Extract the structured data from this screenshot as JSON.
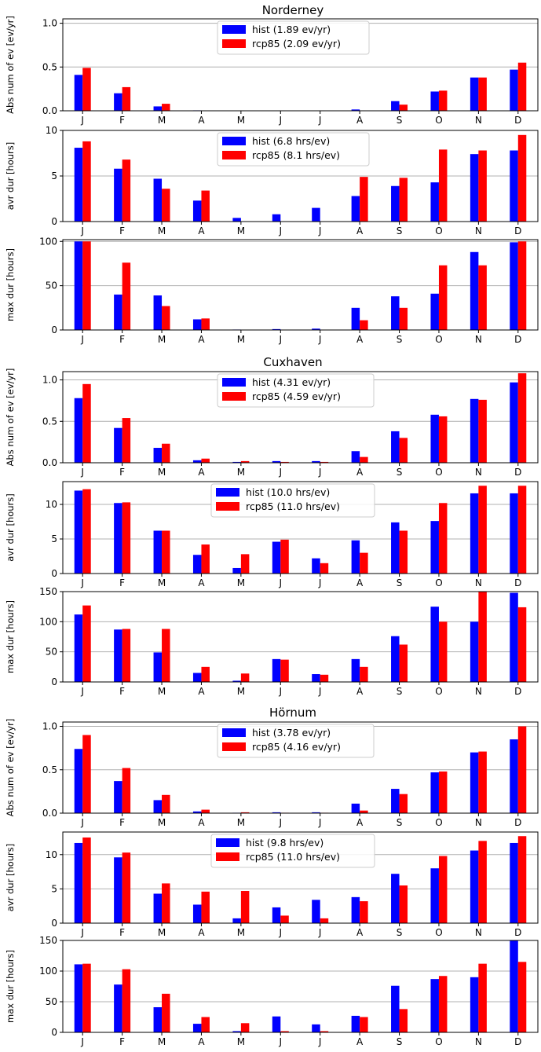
{
  "colors": {
    "hist": "#0000ff",
    "rcp85": "#ff0000"
  },
  "stations": [
    {
      "title": "Norderney"
    },
    {
      "title": "Cuxhaven"
    },
    {
      "title": "Hörnum"
    }
  ],
  "chart_data": [
    {
      "type": "bar",
      "station": "Norderney",
      "ylabel": "Abs num of ev [ev/yr]",
      "ylim": [
        0,
        1.05
      ],
      "yticks": [
        "0.0",
        "0.5",
        "1.0"
      ],
      "ytick_values": [
        0,
        0.5,
        1.0
      ],
      "categories": [
        "J",
        "F",
        "M",
        "A",
        "M",
        "J",
        "J",
        "A",
        "S",
        "O",
        "N",
        "D"
      ],
      "legend": [
        "hist (1.89 ev/yr)",
        "rcp85 (2.09 ev/yr)"
      ],
      "series": [
        {
          "name": "hist",
          "values": [
            0.41,
            0.2,
            0.05,
            0.005,
            0.0,
            0.0,
            0.0,
            0.015,
            0.11,
            0.22,
            0.38,
            0.47
          ]
        },
        {
          "name": "rcp85",
          "values": [
            0.49,
            0.27,
            0.08,
            0.0,
            0.0,
            0.0,
            0.0,
            0.0,
            0.07,
            0.23,
            0.38,
            0.55
          ]
        }
      ]
    },
    {
      "type": "bar",
      "station": "Norderney",
      "ylabel": "avr dur [hours]",
      "ylim": [
        0,
        10
      ],
      "yticks": [
        "0",
        "5",
        "10"
      ],
      "ytick_values": [
        0,
        5,
        10
      ],
      "categories": [
        "J",
        "F",
        "M",
        "A",
        "M",
        "J",
        "J",
        "A",
        "S",
        "O",
        "N",
        "D"
      ],
      "legend": [
        "hist (6.8 hrs/ev)",
        "rcp85 (8.1 hrs/ev)"
      ],
      "series": [
        {
          "name": "hist",
          "values": [
            8.1,
            5.8,
            4.7,
            2.3,
            0.4,
            0.8,
            1.5,
            2.8,
            3.9,
            4.3,
            7.4,
            7.8
          ]
        },
        {
          "name": "rcp85",
          "values": [
            8.8,
            6.8,
            3.6,
            3.4,
            0.0,
            0.0,
            0.0,
            4.9,
            4.8,
            7.9,
            7.8,
            9.5
          ]
        }
      ]
    },
    {
      "type": "bar",
      "station": "Norderney",
      "ylabel": "max dur [hours]",
      "ylim": [
        0,
        102
      ],
      "yticks": [
        "0",
        "50",
        "100"
      ],
      "ytick_values": [
        0,
        50,
        100
      ],
      "categories": [
        "J",
        "F",
        "M",
        "A",
        "M",
        "J",
        "J",
        "A",
        "S",
        "O",
        "N",
        "D"
      ],
      "legend": [],
      "series": [
        {
          "name": "hist",
          "values": [
            100,
            40,
            39,
            12,
            0.5,
            1,
            1.5,
            25,
            38,
            41,
            88,
            99
          ]
        },
        {
          "name": "rcp85",
          "values": [
            100,
            76,
            27,
            13,
            0,
            0,
            0,
            11,
            25,
            73,
            73,
            100
          ]
        }
      ]
    },
    {
      "type": "bar",
      "station": "Cuxhaven",
      "ylabel": "Abs num of ev [ev/yr]",
      "ylim": [
        0,
        1.1
      ],
      "yticks": [
        "0.0",
        "0.5",
        "1.0"
      ],
      "ytick_values": [
        0,
        0.5,
        1.0
      ],
      "categories": [
        "J",
        "F",
        "M",
        "A",
        "M",
        "J",
        "J",
        "A",
        "S",
        "O",
        "N",
        "D"
      ],
      "legend": [
        "hist (4.31 ev/yr)",
        "rcp85 (4.59 ev/yr)"
      ],
      "series": [
        {
          "name": "hist",
          "values": [
            0.78,
            0.42,
            0.18,
            0.03,
            0.01,
            0.02,
            0.02,
            0.14,
            0.38,
            0.58,
            0.77,
            0.97
          ]
        },
        {
          "name": "rcp85",
          "values": [
            0.95,
            0.54,
            0.23,
            0.05,
            0.02,
            0.01,
            0.01,
            0.07,
            0.3,
            0.56,
            0.76,
            1.08
          ]
        }
      ]
    },
    {
      "type": "bar",
      "station": "Cuxhaven",
      "ylabel": "avr dur [hours]",
      "ylim": [
        0,
        13.3
      ],
      "yticks": [
        "0",
        "5",
        "10"
      ],
      "ytick_values": [
        0,
        5,
        10
      ],
      "categories": [
        "J",
        "F",
        "M",
        "A",
        "M",
        "J",
        "J",
        "A",
        "S",
        "O",
        "N",
        "D"
      ],
      "legend": [
        "hist (10.0 hrs/ev)",
        "rcp85 (11.0 hrs/ev)"
      ],
      "series": [
        {
          "name": "hist",
          "values": [
            12.0,
            10.2,
            6.2,
            2.7,
            0.8,
            4.6,
            2.2,
            4.8,
            7.4,
            7.6,
            11.6,
            11.6
          ]
        },
        {
          "name": "rcp85",
          "values": [
            12.2,
            10.3,
            6.2,
            4.2,
            2.8,
            4.9,
            1.5,
            3.0,
            6.2,
            10.2,
            12.7,
            12.7
          ]
        }
      ]
    },
    {
      "type": "bar",
      "station": "Cuxhaven",
      "ylabel": "max dur [hours]",
      "ylim": [
        0,
        150
      ],
      "yticks": [
        "0",
        "50",
        "100",
        "150"
      ],
      "ytick_values": [
        0,
        50,
        100,
        150
      ],
      "categories": [
        "J",
        "F",
        "M",
        "A",
        "M",
        "J",
        "J",
        "A",
        "S",
        "O",
        "N",
        "D"
      ],
      "legend": [],
      "series": [
        {
          "name": "hist",
          "values": [
            112,
            87,
            49,
            15,
            2,
            38,
            13,
            38,
            76,
            125,
            100,
            148
          ]
        },
        {
          "name": "rcp85",
          "values": [
            127,
            88,
            88,
            25,
            14,
            37,
            12,
            25,
            62,
            100,
            150,
            124
          ]
        }
      ]
    },
    {
      "type": "bar",
      "station": "Hörnum",
      "ylabel": "Abs num of ev [ev/yr]",
      "ylim": [
        0,
        1.05
      ],
      "yticks": [
        "0.0",
        "0.5",
        "1.0"
      ],
      "ytick_values": [
        0,
        0.5,
        1.0
      ],
      "categories": [
        "J",
        "F",
        "M",
        "A",
        "M",
        "J",
        "J",
        "A",
        "S",
        "O",
        "N",
        "D"
      ],
      "legend": [
        "hist (3.78 ev/yr)",
        "rcp85 (4.16 ev/yr)"
      ],
      "series": [
        {
          "name": "hist",
          "values": [
            0.74,
            0.37,
            0.15,
            0.02,
            0.005,
            0.01,
            0.01,
            0.11,
            0.28,
            0.47,
            0.7,
            0.85
          ]
        },
        {
          "name": "rcp85",
          "values": [
            0.9,
            0.52,
            0.21,
            0.04,
            0.01,
            0.005,
            0.005,
            0.03,
            0.22,
            0.48,
            0.71,
            1.0
          ]
        }
      ]
    },
    {
      "type": "bar",
      "station": "Hörnum",
      "ylabel": "avr dur [hours]",
      "ylim": [
        0,
        13.3
      ],
      "yticks": [
        "0",
        "5",
        "10"
      ],
      "ytick_values": [
        0,
        5,
        10
      ],
      "categories": [
        "J",
        "F",
        "M",
        "A",
        "M",
        "J",
        "J",
        "A",
        "S",
        "O",
        "N",
        "D"
      ],
      "legend": [
        "hist (9.8 hrs/ev)",
        "rcp85 (11.0 hrs/ev)"
      ],
      "series": [
        {
          "name": "hist",
          "values": [
            11.7,
            9.6,
            4.3,
            2.7,
            0.7,
            2.3,
            3.4,
            3.8,
            7.2,
            8.0,
            10.6,
            11.7
          ]
        },
        {
          "name": "rcp85",
          "values": [
            12.5,
            10.3,
            5.8,
            4.6,
            4.7,
            1.1,
            0.7,
            3.2,
            5.5,
            9.8,
            12.0,
            12.7
          ]
        }
      ]
    },
    {
      "type": "bar",
      "station": "Hörnum",
      "ylabel": "max dur [hours]",
      "ylim": [
        0,
        150
      ],
      "yticks": [
        "0",
        "50",
        "100",
        "150"
      ],
      "ytick_values": [
        0,
        50,
        100,
        150
      ],
      "categories": [
        "J",
        "F",
        "M",
        "A",
        "M",
        "J",
        "J",
        "A",
        "S",
        "O",
        "N",
        "D"
      ],
      "legend": [],
      "series": [
        {
          "name": "hist",
          "values": [
            111,
            78,
            41,
            14,
            2,
            26,
            13,
            27,
            76,
            87,
            90,
            150
          ]
        },
        {
          "name": "rcp85",
          "values": [
            112,
            103,
            63,
            25,
            15,
            2,
            2,
            25,
            38,
            92,
            112,
            115
          ]
        }
      ]
    }
  ]
}
